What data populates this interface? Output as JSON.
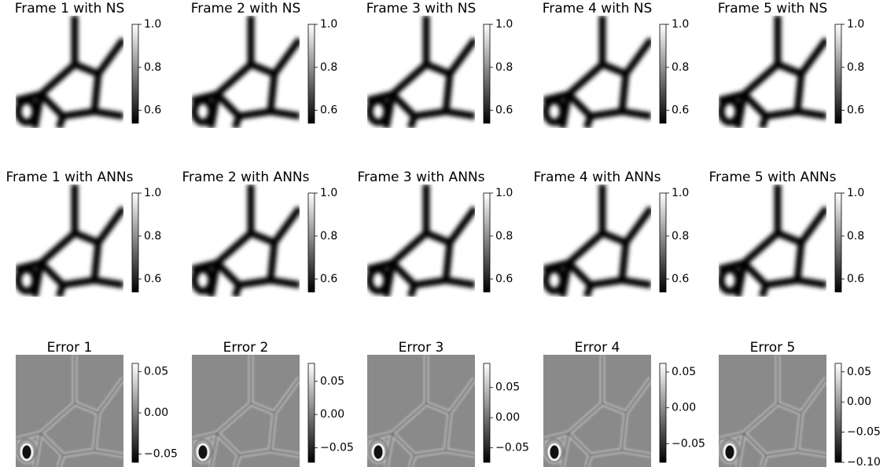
{
  "chart_data": [
    {
      "type": "heatmap",
      "title": "Frame 1 with NS",
      "colormap": "gray",
      "clim": [
        0.54,
        1.0
      ],
      "cticks": [
        0.6,
        0.8,
        {
          "value": 1,
          "label": "1.0"
        }
      ]
    },
    {
      "type": "heatmap",
      "title": "Frame 2 with NS",
      "colormap": "gray",
      "clim": [
        0.54,
        1.0
      ],
      "cticks": [
        0.6,
        0.8,
        {
          "value": 1,
          "label": "1.0"
        }
      ]
    },
    {
      "type": "heatmap",
      "title": "Frame 3 with NS",
      "colormap": "gray",
      "clim": [
        0.54,
        1.0
      ],
      "cticks": [
        0.6,
        0.8,
        {
          "value": 1,
          "label": "1.0"
        }
      ]
    },
    {
      "type": "heatmap",
      "title": "Frame 4 with NS",
      "colormap": "gray",
      "clim": [
        0.54,
        1.0
      ],
      "cticks": [
        0.6,
        0.8,
        {
          "value": 1,
          "label": "1.0"
        }
      ]
    },
    {
      "type": "heatmap",
      "title": "Frame 5 with NS",
      "colormap": "gray",
      "clim": [
        0.54,
        1.0
      ],
      "cticks": [
        0.6,
        0.8,
        {
          "value": 1,
          "label": "1.0"
        }
      ]
    },
    {
      "type": "heatmap",
      "title": "Frame 1 with ANNs",
      "colormap": "gray",
      "clim": [
        0.54,
        1.0
      ],
      "cticks": [
        0.6,
        0.8,
        {
          "value": 1,
          "label": "1.0"
        }
      ]
    },
    {
      "type": "heatmap",
      "title": "Frame 2 with ANNs",
      "colormap": "gray",
      "clim": [
        0.54,
        1.0
      ],
      "cticks": [
        0.6,
        0.8,
        {
          "value": 1,
          "label": "1.0"
        }
      ]
    },
    {
      "type": "heatmap",
      "title": "Frame 3 with ANNs",
      "colormap": "gray",
      "clim": [
        0.54,
        1.0
      ],
      "cticks": [
        0.6,
        0.8,
        {
          "value": 1,
          "label": "1.0"
        }
      ]
    },
    {
      "type": "heatmap",
      "title": "Frame 4 with ANNs",
      "colormap": "gray",
      "clim": [
        0.54,
        1.0
      ],
      "cticks": [
        0.6,
        0.8,
        {
          "value": 1,
          "label": "1.0"
        }
      ]
    },
    {
      "type": "heatmap",
      "title": "Frame 5 with ANNs",
      "colormap": "gray",
      "clim": [
        0.54,
        1.0
      ],
      "cticks": [
        0.6,
        0.8,
        {
          "value": 1,
          "label": "1.0"
        }
      ]
    },
    {
      "type": "heatmap",
      "title": "Error 1",
      "colormap": "gray",
      "clim": [
        -0.06,
        0.06
      ],
      "cticks": [
        {
          "value": -0.05,
          "label": "−0.05"
        },
        {
          "value": 0,
          "label": "0.00"
        },
        0.05
      ]
    },
    {
      "type": "heatmap",
      "title": "Error 2",
      "colormap": "gray",
      "clim": [
        -0.072,
        0.077
      ],
      "cticks": [
        {
          "value": -0.05,
          "label": "−0.05"
        },
        {
          "value": 0,
          "label": "0.00"
        },
        0.05
      ]
    },
    {
      "type": "heatmap",
      "title": "Error 3",
      "colormap": "gray",
      "clim": [
        -0.074,
        0.09
      ],
      "cticks": [
        {
          "value": -0.05,
          "label": "−0.05"
        },
        {
          "value": 0,
          "label": "0.00"
        },
        0.05
      ]
    },
    {
      "type": "heatmap",
      "title": "Error 4",
      "colormap": "gray",
      "clim": [
        -0.076,
        0.062
      ],
      "cticks": [
        {
          "value": -0.05,
          "label": "−0.05"
        },
        {
          "value": 0,
          "label": "0.00"
        },
        0.05
      ]
    },
    {
      "type": "heatmap",
      "title": "Error 5",
      "colormap": "gray",
      "clim": [
        -0.1,
        0.064
      ],
      "cticks": [
        {
          "value": -0.1,
          "label": "−0.10"
        },
        {
          "value": -0.05,
          "label": "−0.05"
        },
        {
          "value": 0,
          "label": "0.00"
        },
        0.05
      ]
    }
  ]
}
